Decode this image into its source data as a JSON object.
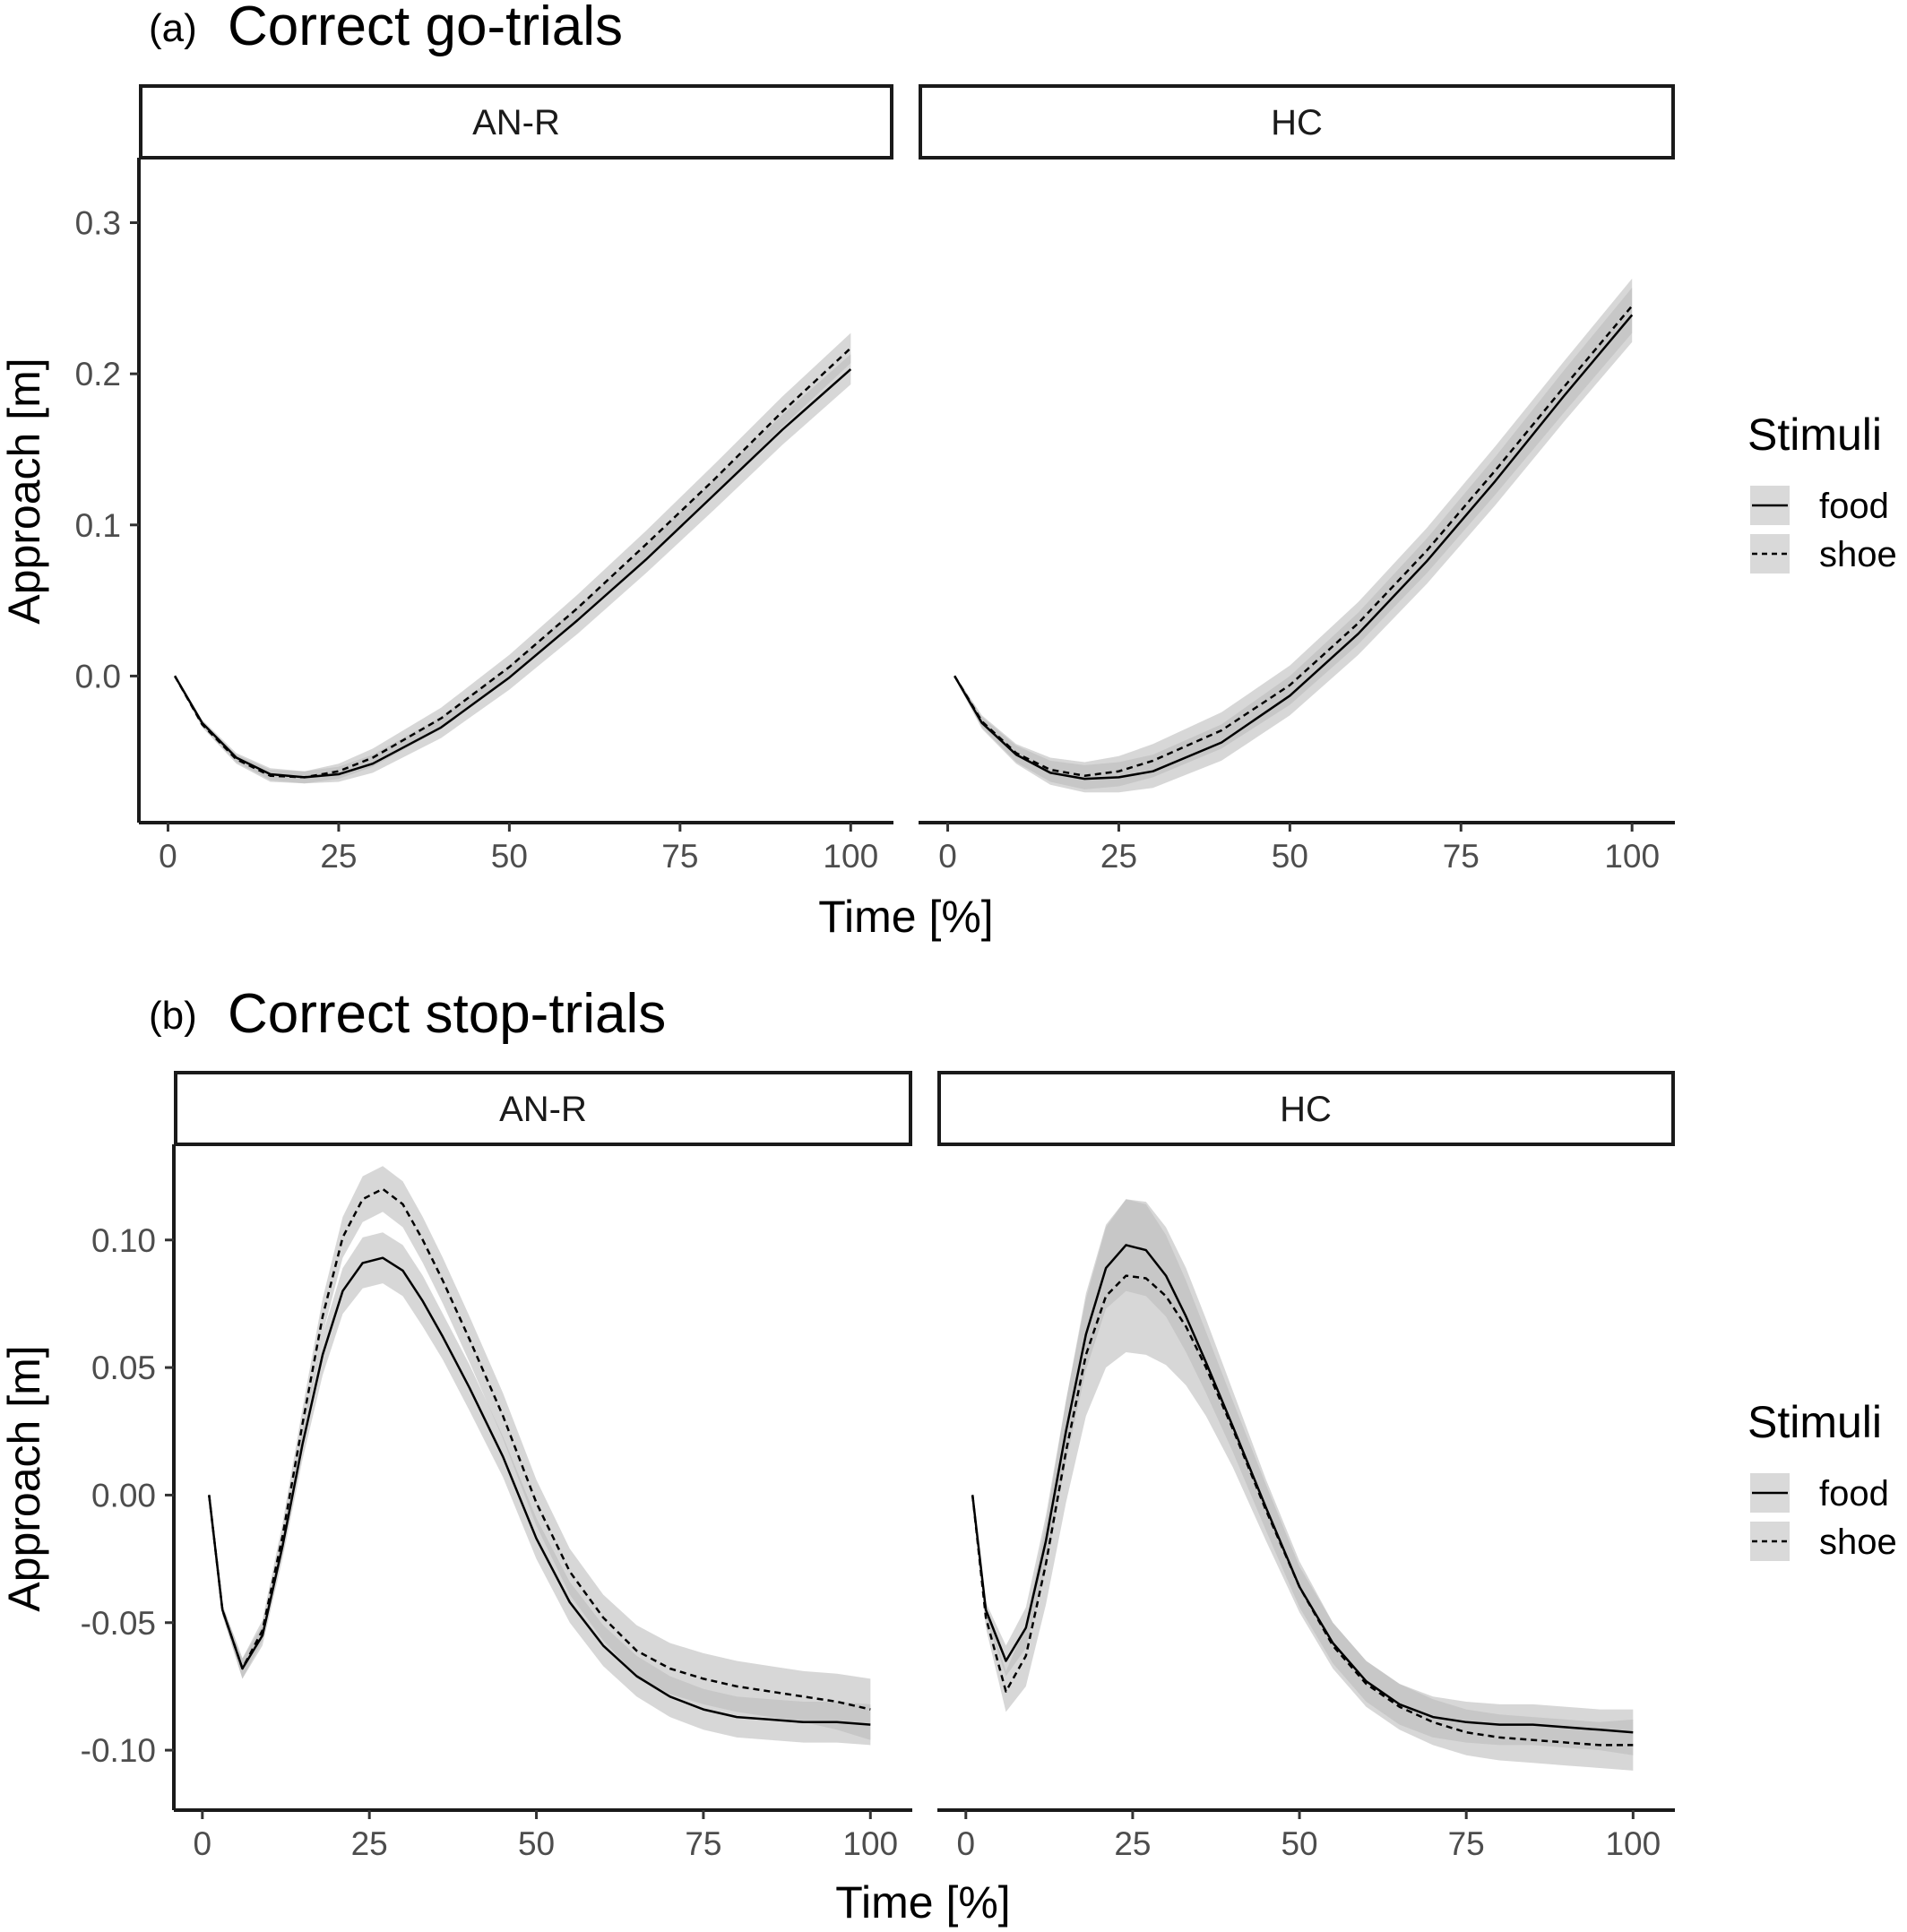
{
  "legend_title": "Stimuli",
  "legend_items": [
    {
      "label": "food",
      "linestyle": "solid"
    },
    {
      "label": "shoe",
      "linestyle": "dashed"
    }
  ],
  "colors": {
    "line": "#000000",
    "ribbon": "#bdbdbd",
    "strip_fill": "#ffffff"
  },
  "chart_data": [
    {
      "type": "line",
      "panel_tag": "(a)",
      "title": "Correct go-trials",
      "xlabel": "Time [%]",
      "ylabel": "Approach [m]",
      "xlim": [
        -4,
        106
      ],
      "ylim": [
        -0.097,
        0.343
      ],
      "xticks": [
        0,
        25,
        50,
        75,
        100
      ],
      "xtick_labels": [
        "0",
        "25",
        "50",
        "75",
        "100"
      ],
      "yticks": [
        0.0,
        0.1,
        0.2,
        0.3
      ],
      "ytick_labels": [
        "0.0",
        "0.1",
        "0.2",
        "0.3"
      ],
      "grid": false,
      "legend": "right",
      "facets": [
        {
          "label": "AN-R",
          "series": [
            {
              "name": "food",
              "x": [
                1,
                5,
                10,
                15,
                20,
                25,
                30,
                40,
                50,
                60,
                70,
                80,
                90,
                100
              ],
              "y": [
                0.0,
                -0.031,
                -0.054,
                -0.065,
                -0.067,
                -0.065,
                -0.058,
                -0.034,
                -0.001,
                0.037,
                0.077,
                0.12,
                0.163,
                0.203
              ],
              "ci": [
                0.001,
                0.002,
                0.003,
                0.004,
                0.004,
                0.005,
                0.006,
                0.007,
                0.008,
                0.009,
                0.009,
                0.01,
                0.01,
                0.01
              ]
            },
            {
              "name": "shoe",
              "x": [
                1,
                5,
                10,
                15,
                20,
                25,
                30,
                40,
                50,
                60,
                70,
                80,
                90,
                100
              ],
              "y": [
                0.0,
                -0.032,
                -0.055,
                -0.066,
                -0.067,
                -0.063,
                -0.054,
                -0.028,
                0.006,
                0.045,
                0.087,
                0.13,
                0.175,
                0.217
              ],
              "ci": [
                0.001,
                0.002,
                0.003,
                0.004,
                0.004,
                0.005,
                0.006,
                0.007,
                0.008,
                0.009,
                0.009,
                0.01,
                0.01,
                0.01
              ]
            }
          ]
        },
        {
          "label": "HC",
          "series": [
            {
              "name": "food",
              "x": [
                1,
                5,
                10,
                15,
                20,
                25,
                30,
                40,
                50,
                60,
                70,
                80,
                90,
                100
              ],
              "y": [
                0.0,
                -0.031,
                -0.052,
                -0.064,
                -0.068,
                -0.067,
                -0.063,
                -0.044,
                -0.013,
                0.028,
                0.076,
                0.129,
                0.185,
                0.239
              ],
              "ci": [
                0.001,
                0.004,
                0.006,
                0.008,
                0.009,
                0.01,
                0.011,
                0.012,
                0.013,
                0.014,
                0.015,
                0.016,
                0.017,
                0.018
              ]
            },
            {
              "name": "shoe",
              "x": [
                1,
                5,
                10,
                15,
                20,
                25,
                30,
                40,
                50,
                60,
                70,
                80,
                90,
                100
              ],
              "y": [
                0.0,
                -0.03,
                -0.051,
                -0.062,
                -0.066,
                -0.063,
                -0.056,
                -0.036,
                -0.006,
                0.035,
                0.083,
                0.136,
                0.191,
                0.245
              ],
              "ci": [
                0.001,
                0.004,
                0.006,
                0.008,
                0.009,
                0.01,
                0.011,
                0.012,
                0.013,
                0.014,
                0.015,
                0.016,
                0.017,
                0.018
              ]
            }
          ]
        }
      ]
    },
    {
      "type": "line",
      "panel_tag": "(b)",
      "title": "Correct stop-trials",
      "xlabel": "Time [%]",
      "ylabel": "Approach [m]",
      "xlim": [
        -4,
        106
      ],
      "ylim": [
        -0.1235,
        0.1375
      ],
      "xticks": [
        0,
        25,
        50,
        75,
        100
      ],
      "xtick_labels": [
        "0",
        "25",
        "50",
        "75",
        "100"
      ],
      "yticks": [
        -0.1,
        -0.05,
        0.0,
        0.05,
        0.1
      ],
      "ytick_labels": [
        "-0.10",
        "-0.05",
        "0.00",
        "0.05",
        "0.10"
      ],
      "grid": false,
      "legend": "right",
      "facets": [
        {
          "label": "AN-R",
          "series": [
            {
              "name": "food",
              "x": [
                1,
                3,
                6,
                9,
                12,
                15,
                18,
                21,
                24,
                27,
                30,
                33,
                36,
                40,
                45,
                50,
                55,
                60,
                65,
                70,
                75,
                80,
                85,
                90,
                95,
                100
              ],
              "y": [
                0.0,
                -0.045,
                -0.068,
                -0.055,
                -0.02,
                0.02,
                0.055,
                0.08,
                0.091,
                0.093,
                0.088,
                0.076,
                0.062,
                0.042,
                0.015,
                -0.017,
                -0.042,
                -0.059,
                -0.071,
                -0.079,
                -0.084,
                -0.087,
                -0.088,
                -0.089,
                -0.089,
                -0.09
              ],
              "ci": [
                0.001,
                0.002,
                0.004,
                0.004,
                0.005,
                0.006,
                0.008,
                0.009,
                0.01,
                0.01,
                0.01,
                0.01,
                0.009,
                0.009,
                0.008,
                0.008,
                0.008,
                0.008,
                0.008,
                0.008,
                0.008,
                0.008,
                0.008,
                0.008,
                0.008,
                0.008
              ]
            },
            {
              "name": "shoe",
              "x": [
                1,
                3,
                6,
                9,
                12,
                15,
                18,
                21,
                24,
                27,
                30,
                33,
                36,
                40,
                45,
                50,
                55,
                60,
                65,
                70,
                75,
                80,
                85,
                90,
                95,
                100
              ],
              "y": [
                0.0,
                -0.045,
                -0.068,
                -0.053,
                -0.016,
                0.028,
                0.07,
                0.101,
                0.116,
                0.12,
                0.114,
                0.1,
                0.084,
                0.061,
                0.031,
                -0.003,
                -0.03,
                -0.048,
                -0.061,
                -0.068,
                -0.072,
                -0.075,
                -0.077,
                -0.079,
                -0.081,
                -0.084
              ],
              "ci": [
                0.001,
                0.002,
                0.004,
                0.004,
                0.005,
                0.006,
                0.007,
                0.008,
                0.009,
                0.009,
                0.009,
                0.009,
                0.009,
                0.009,
                0.009,
                0.009,
                0.009,
                0.009,
                0.01,
                0.01,
                0.01,
                0.01,
                0.01,
                0.01,
                0.011,
                0.012
              ]
            }
          ]
        },
        {
          "label": "HC",
          "series": [
            {
              "name": "food",
              "x": [
                1,
                3,
                6,
                9,
                12,
                15,
                18,
                21,
                24,
                27,
                30,
                33,
                36,
                40,
                45,
                50,
                55,
                60,
                65,
                70,
                75,
                80,
                85,
                90,
                95,
                100
              ],
              "y": [
                0.0,
                -0.045,
                -0.065,
                -0.052,
                -0.018,
                0.025,
                0.063,
                0.089,
                0.098,
                0.096,
                0.086,
                0.07,
                0.052,
                0.027,
                -0.005,
                -0.036,
                -0.058,
                -0.073,
                -0.082,
                -0.087,
                -0.089,
                -0.09,
                -0.09,
                -0.091,
                -0.092,
                -0.093
              ],
              "ci": [
                0.001,
                0.003,
                0.006,
                0.008,
                0.01,
                0.012,
                0.014,
                0.016,
                0.018,
                0.018,
                0.016,
                0.014,
                0.012,
                0.01,
                0.009,
                0.008,
                0.008,
                0.008,
                0.008,
                0.008,
                0.008,
                0.008,
                0.008,
                0.008,
                0.008,
                0.009
              ]
            },
            {
              "name": "shoe",
              "x": [
                1,
                3,
                6,
                9,
                12,
                15,
                18,
                21,
                24,
                27,
                30,
                33,
                36,
                40,
                45,
                50,
                55,
                60,
                65,
                70,
                75,
                80,
                85,
                90,
                95,
                100
              ],
              "y": [
                0.0,
                -0.048,
                -0.077,
                -0.063,
                -0.027,
                0.017,
                0.055,
                0.078,
                0.086,
                0.085,
                0.078,
                0.066,
                0.05,
                0.026,
                -0.006,
                -0.036,
                -0.059,
                -0.074,
                -0.083,
                -0.089,
                -0.093,
                -0.095,
                -0.096,
                -0.097,
                -0.098,
                -0.098
              ],
              "ci": [
                0.001,
                0.004,
                0.008,
                0.012,
                0.016,
                0.02,
                0.024,
                0.028,
                0.03,
                0.03,
                0.027,
                0.023,
                0.019,
                0.015,
                0.012,
                0.01,
                0.009,
                0.009,
                0.009,
                0.009,
                0.009,
                0.009,
                0.009,
                0.009,
                0.009,
                0.01
              ]
            }
          ]
        }
      ]
    }
  ]
}
